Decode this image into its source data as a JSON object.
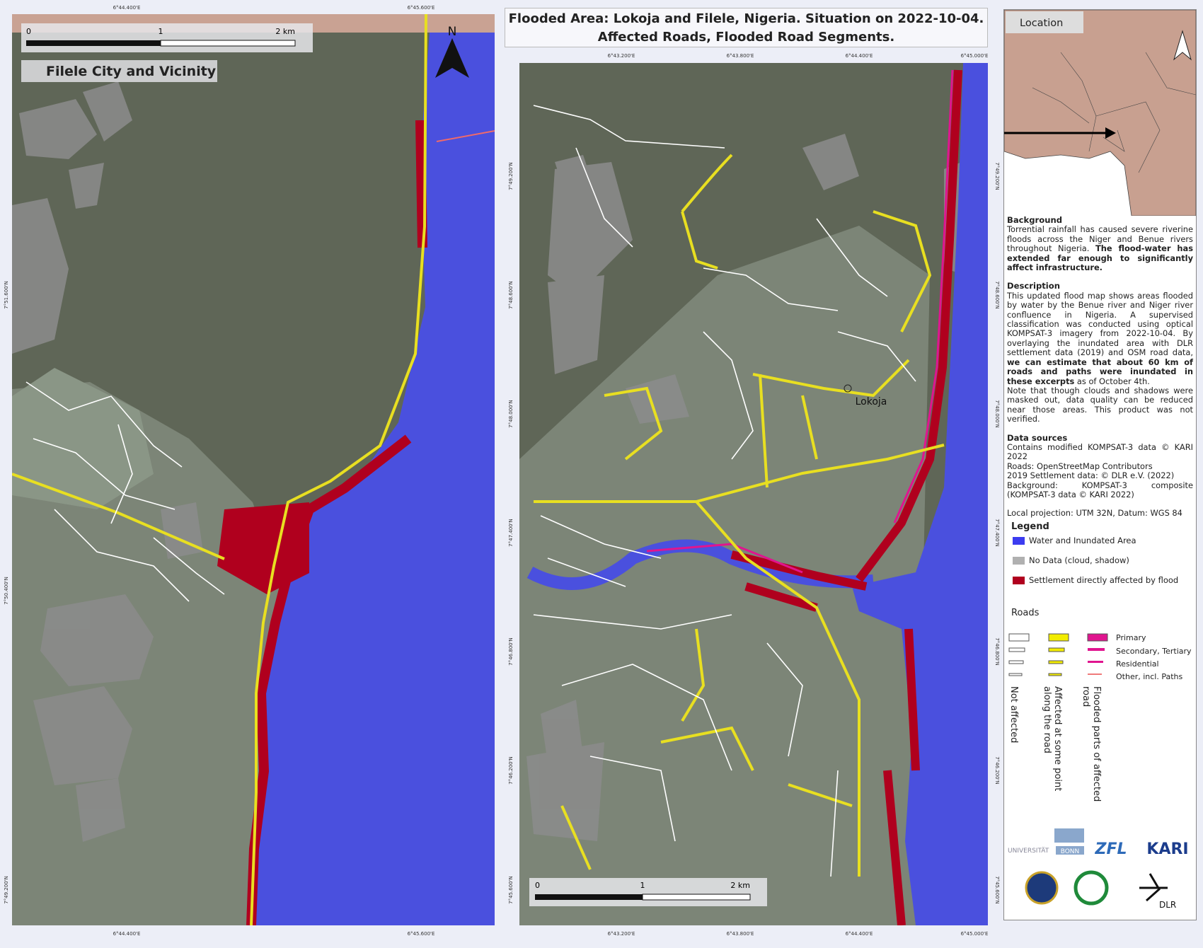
{
  "title": [
    "Flooded Area: Lokoja and Filele, Nigeria. Situation on 2022-10-04.",
    "Affected Roads, Flooded Road Segments."
  ],
  "left_map": {
    "label": "Filele City and Vicinity",
    "north": "N",
    "scale_bar": [
      "0",
      "1",
      "2 km"
    ],
    "x_ticks": [
      "6°44.400'E",
      "6°45.600'E"
    ],
    "y_ticks": [
      "7°51.600'N",
      "7°50.400'N",
      "7°49.200'N"
    ]
  },
  "right_map": {
    "place": "Lokoja",
    "scale_bar": [
      "0",
      "1",
      "2 km"
    ],
    "x_ticks": [
      "6°43.200'E",
      "6°43.800'E",
      "6°44.400'E",
      "6°45.000'E"
    ],
    "y_ticks": [
      "7°49.200'N",
      "7°48.600'N",
      "7°48.000'N",
      "7°47.400'N",
      "7°46.800'N",
      "7°46.200'N",
      "7°45.600'N"
    ]
  },
  "inset": {
    "label": "Location"
  },
  "background": {
    "heading": "Background",
    "text": "Torrential rainfall has caused severe riverine floods across the Niger and Benue rivers throughout Nigeria. ",
    "bold": "The flood-water has extended far enough to significantly affect infrastructure."
  },
  "description": {
    "heading": "Description",
    "text": "This updated flood map shows areas flooded by water by the Benue river and Niger river confluence in Nigeria. A supervised classification was conducted using optical KOMPSAT-3 imagery from 2022-10-04. By overlaying the inundated area with DLR settlement data (2019) and OSM road data, ",
    "bold": "we can estimate that about 60 km of roads and paths were inundated in these excerpts",
    "tail": " as of October 4th.",
    "note": "Note that though clouds and shadows were masked out, data quality can be reduced near those areas. This product was not verified."
  },
  "data_sources": {
    "heading": "Data sources",
    "lines": [
      "Contains modified KOMPSAT-3 data © KARI 2022",
      "Roads: OpenStreetMap Contributors",
      "2019 Settlement data: © DLR e.V. (2022)",
      "Background: KOMPSAT-3 composite (KOMPSAT-3 data © KARI 2022)"
    ]
  },
  "projection": "Local projection: UTM 32N, Datum: WGS 84",
  "legend": {
    "title": "Legend",
    "items": [
      "Water and Inundated Area",
      "No Data (cloud, shadow)",
      "Settlement directly affected by flood"
    ],
    "roads_title": "Roads",
    "road_classes": [
      "Primary",
      "Secondary, Tertiary",
      "Residential",
      "Other, incl. Paths"
    ],
    "road_columns": [
      "Not affected",
      "Affected at some point along the road",
      "Flooded parts of affected road"
    ]
  },
  "logos": [
    "UNIVERSITÄT",
    "BONN",
    "ZFL",
    "KARI",
    "DLR"
  ]
}
